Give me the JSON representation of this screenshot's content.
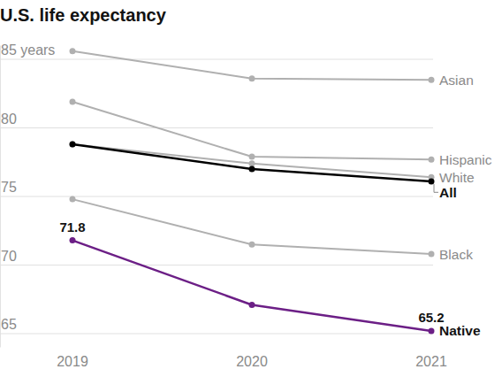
{
  "chart_data": {
    "type": "line",
    "title": "U.S. life expectancy",
    "categories": [
      "2019",
      "2020",
      "2021"
    ],
    "ylim": [
      64,
      86
    ],
    "yticks": [
      65,
      70,
      75,
      80,
      {
        "value": 85,
        "label": "85 years"
      }
    ],
    "grid": true,
    "marker": "circle",
    "series": [
      {
        "name": "Asian",
        "color": "#b0b0b0",
        "values": [
          85.6,
          83.6,
          83.5
        ]
      },
      {
        "name": "Hispanic",
        "color": "#b0b0b0",
        "values": [
          81.9,
          77.9,
          77.7
        ]
      },
      {
        "name": "White",
        "color": "#b0b0b0",
        "values": [
          78.8,
          77.4,
          76.4
        ]
      },
      {
        "name": "All",
        "color": "#000000",
        "values": [
          78.8,
          77.0,
          76.1
        ]
      },
      {
        "name": "Black",
        "color": "#b0b0b0",
        "values": [
          74.8,
          71.5,
          70.8
        ]
      },
      {
        "name": "Native",
        "color": "#6c1f86",
        "values": [
          71.8,
          67.1,
          65.2
        ],
        "value_labels": [
          "71.8",
          null,
          "65.2"
        ]
      }
    ]
  }
}
